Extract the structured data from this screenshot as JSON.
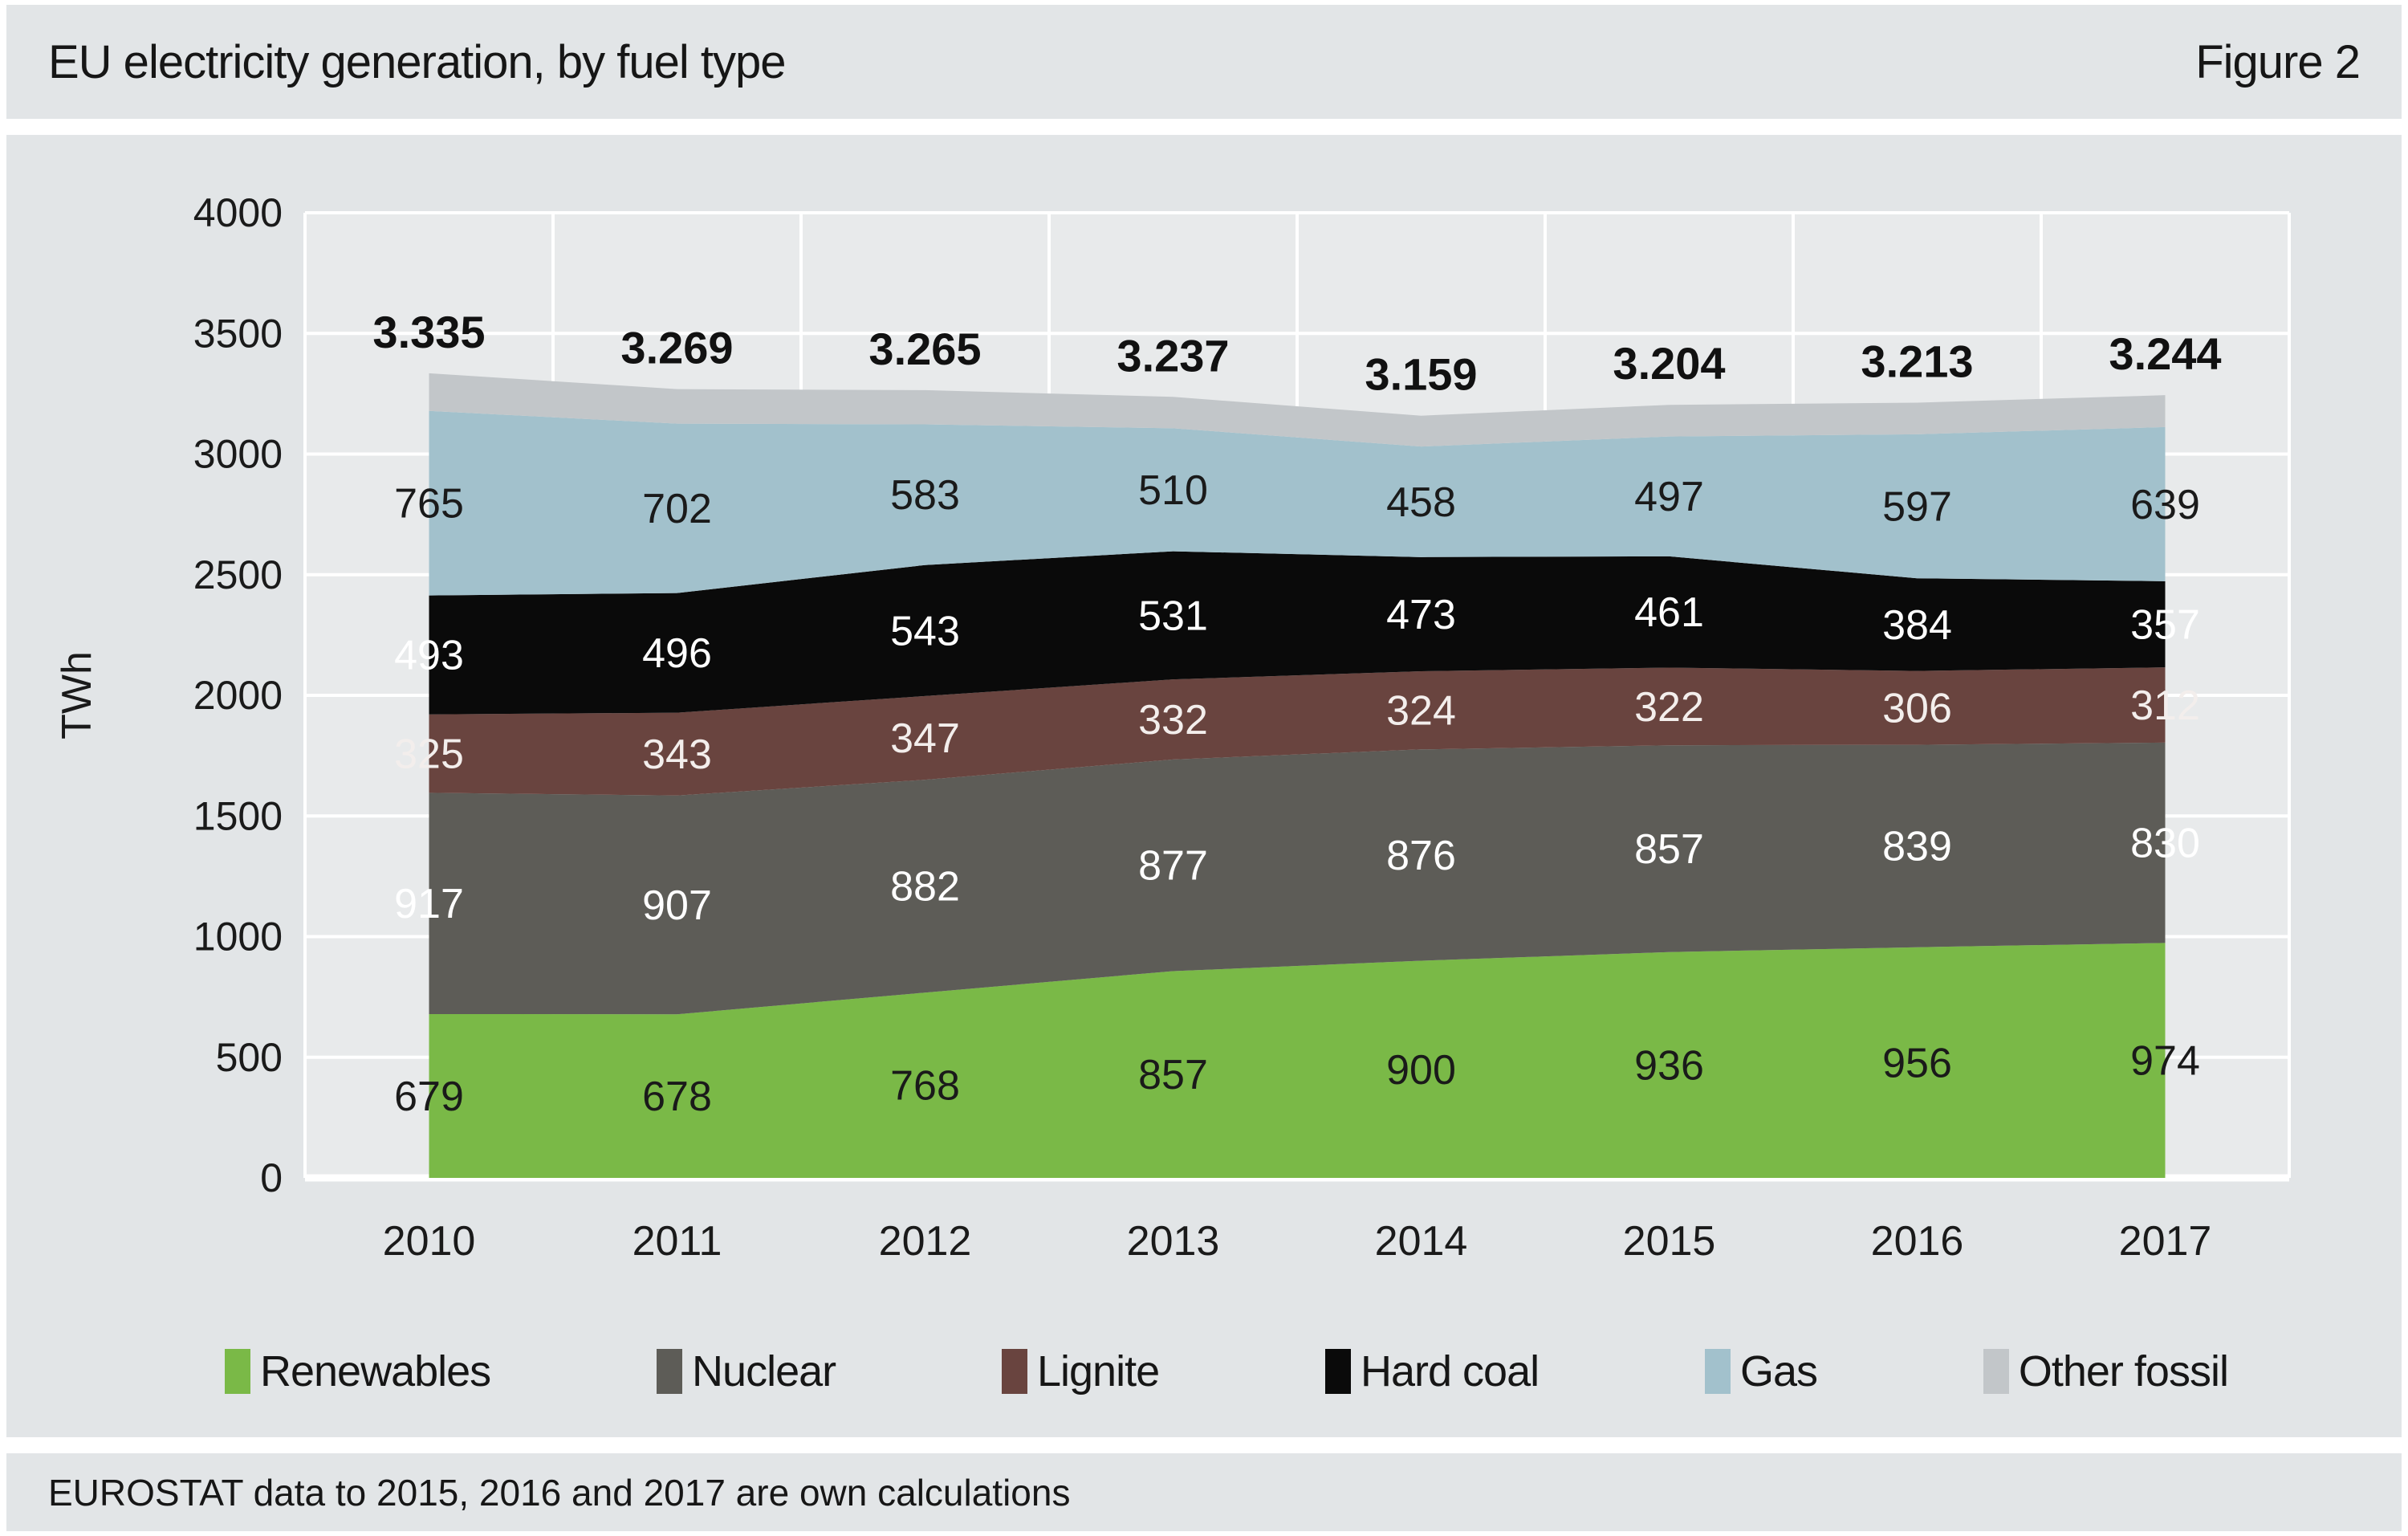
{
  "header": {
    "title": "EU electricity generation, by fuel type",
    "figure_label": "Figure 2"
  },
  "footer": {
    "note": "EUROSTAT data to 2015, 2016 and 2017 are own calculations"
  },
  "colors": {
    "page_background": "#ffffff",
    "band_background": "#e2e5e7",
    "plot_background": "#e8eaeb",
    "gridline": "#ffffff",
    "text": "#1a1a1a",
    "total_label": "#111111"
  },
  "chart_data": {
    "type": "area",
    "stacked": true,
    "title": "EU electricity generation, by fuel type",
    "ylabel": "TWh",
    "ylim": [
      0,
      4000
    ],
    "yticks": [
      0,
      500,
      1000,
      1500,
      2000,
      2500,
      3000,
      3500,
      4000
    ],
    "grid": true,
    "legend_position": "bottom",
    "x": [
      "2010",
      "2011",
      "2012",
      "2013",
      "2014",
      "2015",
      "2016",
      "2017"
    ],
    "series": [
      {
        "name": "Renewables",
        "color": "#7ab947",
        "label_color": "#1a1a1a",
        "show_labels": true,
        "values": [
          679,
          678,
          768,
          857,
          900,
          936,
          956,
          974
        ]
      },
      {
        "name": "Nuclear",
        "color": "#5d5c57",
        "label_color": "#ffffff",
        "show_labels": true,
        "values": [
          917,
          907,
          882,
          877,
          876,
          857,
          839,
          830
        ]
      },
      {
        "name": "Lignite",
        "color": "#69443f",
        "label_color": "#f3eeec",
        "show_labels": true,
        "values": [
          325,
          343,
          347,
          332,
          324,
          322,
          306,
          312
        ]
      },
      {
        "name": "Hard coal",
        "color": "#0a0a0a",
        "label_color": "#ffffff",
        "show_labels": true,
        "values": [
          493,
          496,
          543,
          531,
          473,
          461,
          384,
          357
        ]
      },
      {
        "name": "Gas",
        "color": "#a2c1cc",
        "label_color": "#1a1a1a",
        "show_labels": true,
        "values": [
          765,
          702,
          583,
          510,
          458,
          497,
          597,
          639
        ]
      },
      {
        "name": "Other fossil",
        "color": "#c2c6c9",
        "label_color": null,
        "show_labels": false,
        "values": [
          156,
          143,
          142,
          130,
          128,
          131,
          131,
          132
        ]
      }
    ],
    "totals": {
      "labels": [
        "3.335",
        "3.269",
        "3.265",
        "3.237",
        "3.159",
        "3.204",
        "3.213",
        "3.244"
      ]
    }
  }
}
